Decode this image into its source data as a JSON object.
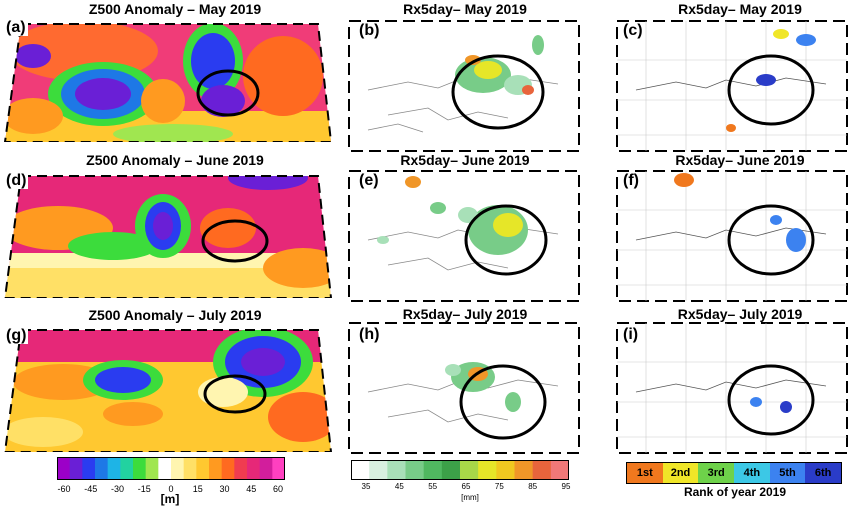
{
  "titles": {
    "z_may": "Z500 Anomaly – May 2019",
    "z_jun": "Z500 Anomaly – June 2019",
    "z_jul": "Z500 Anomaly – July 2019",
    "rx_may_b": "Rx5day– May 2019",
    "rx_jun_e": "Rx5day– June 2019",
    "rx_jul_h": "Rx5day– July 2019",
    "rk_may_c": "Rx5day– May 2019",
    "rk_jun_f": "Rx5day– June 2019",
    "rk_jul_i": "Rx5day– July 2019"
  },
  "labels": {
    "a": "(a)",
    "b": "(b)",
    "c": "(c)",
    "d": "(d)",
    "e": "(e)",
    "f": "(f)",
    "g": "(g)",
    "h": "(h)",
    "i": "(i)"
  },
  "z500_colorbar": {
    "ticks": [
      "-60",
      "-45",
      "-30",
      "-15",
      "0",
      "15",
      "30",
      "45",
      "60"
    ],
    "unit": "[m]",
    "colors": [
      "#9c00c8",
      "#6a1fd6",
      "#2a3cf0",
      "#1e78e6",
      "#1eb4e6",
      "#22d2a0",
      "#3cdc3c",
      "#a0e650",
      "#ffffff",
      "#fff5b0",
      "#ffe066",
      "#ffc830",
      "#ff9a20",
      "#ff6a20",
      "#f03c50",
      "#e62878",
      "#d21e9c",
      "#ff40c0"
    ]
  },
  "rx5day_colorbar": {
    "ticks": [
      "35",
      "45",
      "55",
      "65",
      "75",
      "85",
      "95"
    ],
    "unit": "[mm]",
    "colors": [
      "#ffffff",
      "#d8f0e0",
      "#a8e0b8",
      "#78cc88",
      "#50b860",
      "#3ca048",
      "#a8d848",
      "#e6e628",
      "#f0c820",
      "#f09628",
      "#e8643c",
      "#f07878"
    ]
  },
  "rank_legend": {
    "cells": [
      {
        "label": "1st",
        "color": "#f0781e"
      },
      {
        "label": "2nd",
        "color": "#f0e628"
      },
      {
        "label": "3rd",
        "color": "#6ed24a"
      },
      {
        "label": "4th",
        "color": "#3cc8e6"
      },
      {
        "label": "5th",
        "color": "#3c82f0"
      },
      {
        "label": "6th",
        "color": "#2a3cc8"
      }
    ],
    "caption": "Rank of year 2019"
  }
}
